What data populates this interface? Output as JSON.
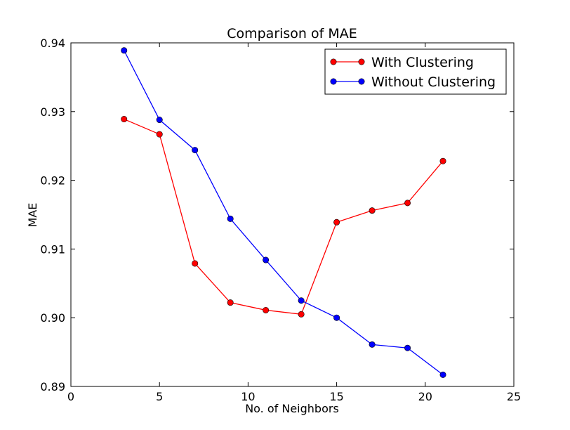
{
  "chart_data": {
    "type": "line",
    "title": "Comparison of MAE",
    "xlabel": "No. of Neighbors",
    "ylabel": "MAE",
    "xlim": [
      0,
      25
    ],
    "ylim": [
      0.89,
      0.94
    ],
    "xticks": [
      0,
      5,
      10,
      15,
      20,
      25
    ],
    "yticks": [
      0.89,
      0.9,
      0.91,
      0.92,
      0.93,
      0.94
    ],
    "xtick_labels": [
      "0",
      "5",
      "10",
      "15",
      "20",
      "25"
    ],
    "ytick_labels": [
      "0.89",
      "0.90",
      "0.91",
      "0.92",
      "0.93",
      "0.94"
    ],
    "grid": false,
    "legend_position": "top-right",
    "x": [
      3,
      5,
      7,
      9,
      11,
      13,
      15,
      17,
      19,
      21
    ],
    "series": [
      {
        "name": "With Clustering",
        "color": "#ff0000",
        "values": [
          0.9289,
          0.9267,
          0.9079,
          0.9022,
          0.9011,
          0.9005,
          0.9139,
          0.9156,
          0.9167,
          0.9228
        ]
      },
      {
        "name": "Without Clustering",
        "color": "#0000ff",
        "values": [
          0.9389,
          0.9288,
          0.9244,
          0.9144,
          0.9084,
          0.9025,
          0.9,
          0.8961,
          0.8956,
          0.8917
        ]
      }
    ]
  }
}
